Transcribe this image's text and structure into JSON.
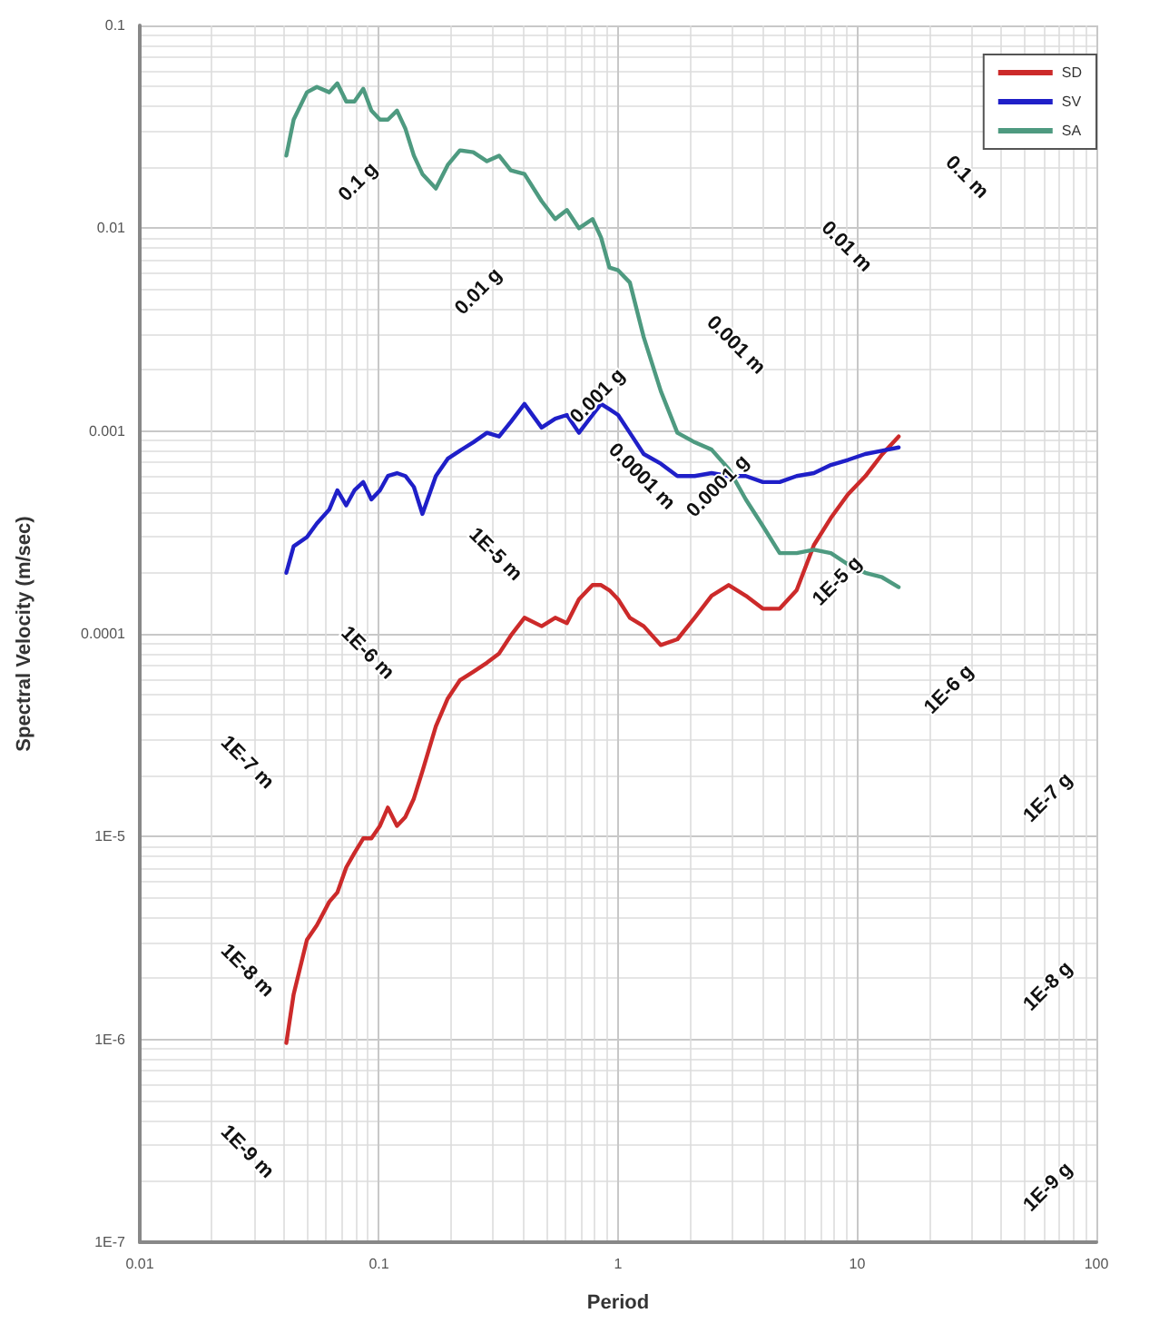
{
  "chart_data": {
    "type": "line",
    "xlabel": "Period",
    "ylabel": "Spectral Velocity (m/sec)",
    "x": [
      0.041,
      0.044,
      0.05,
      0.055,
      0.062,
      0.067,
      0.073,
      0.079,
      0.086,
      0.093,
      0.101,
      0.109,
      0.119,
      0.129,
      0.14,
      0.152,
      0.173,
      0.194,
      0.218,
      0.248,
      0.283,
      0.318,
      0.356,
      0.406,
      0.479,
      0.546,
      0.611,
      0.686,
      0.782,
      0.849,
      0.92,
      1.0,
      1.12,
      1.28,
      1.51,
      1.77,
      2.09,
      2.46,
      2.9,
      3.42,
      4.03,
      4.74,
      5.58,
      6.59,
      7.76,
      9.14,
      10.8,
      12.7,
      14.9
    ],
    "series": [
      {
        "name": "SD",
        "color": "#cc2a2a",
        "values": [
          9.6e-07,
          1.67e-06,
          3.1e-06,
          3.65e-06,
          4.77e-06,
          5.3e-06,
          7.05e-06,
          8.3e-06,
          9.8e-06,
          9.8e-06,
          1.13e-05,
          1.39e-05,
          1.13e-05,
          1.25e-05,
          1.54e-05,
          2.1e-05,
          3.5e-05,
          4.8e-05,
          5.9e-05,
          6.5e-05,
          7.2e-05,
          8e-05,
          9.8e-05,
          0.00012,
          0.000109,
          0.00012,
          0.000113,
          0.000148,
          0.000174,
          0.000174,
          0.000164,
          0.000148,
          0.00012,
          0.000109,
          8.8e-05,
          9.4e-05,
          0.00012,
          0.000154,
          0.000174,
          0.000154,
          0.000133,
          0.000133,
          0.000164,
          0.000274,
          0.000373,
          0.000487,
          0.000598,
          0.000766,
          0.00094
        ]
      },
      {
        "name": "SV",
        "color": "#1f1fc8",
        "values": [
          0.0002,
          0.00027,
          0.0003,
          0.00035,
          0.00041,
          0.00051,
          0.00043,
          0.00051,
          0.00056,
          0.00046,
          0.00051,
          0.0006,
          0.00062,
          0.0006,
          0.00053,
          0.00039,
          0.0006,
          0.00073,
          0.0008,
          0.00088,
          0.00098,
          0.00094,
          0.00111,
          0.00136,
          0.00104,
          0.00115,
          0.0012,
          0.00098,
          0.0012,
          0.00136,
          0.00128,
          0.0012,
          0.00098,
          0.00077,
          0.00069,
          0.0006,
          0.0006,
          0.00062,
          0.0006,
          0.0006,
          0.00056,
          0.00056,
          0.0006,
          0.00062,
          0.00068,
          0.00072,
          0.00077,
          0.0008,
          0.00083
        ]
      },
      {
        "name": "SA",
        "color": "#4e9a80",
        "values": [
          0.0228,
          0.0343,
          0.0468,
          0.0497,
          0.0468,
          0.0518,
          0.0422,
          0.0422,
          0.0487,
          0.038,
          0.0343,
          0.0343,
          0.038,
          0.031,
          0.0228,
          0.0185,
          0.0157,
          0.0205,
          0.0242,
          0.0237,
          0.0214,
          0.0228,
          0.0193,
          0.0185,
          0.0136,
          0.0111,
          0.0123,
          0.01,
          0.0111,
          0.009,
          0.0064,
          0.0062,
          0.0054,
          0.0029,
          0.00157,
          0.00098,
          0.00088,
          0.00081,
          0.00065,
          0.00046,
          0.00034,
          0.00025,
          0.00025,
          0.00026,
          0.00025,
          0.00022,
          0.0002,
          0.00019,
          0.00017
        ]
      }
    ],
    "log": "xy",
    "xlim": [
      0.01,
      100
    ],
    "xticks": [
      0.01,
      0.1,
      1,
      10,
      100
    ],
    "ylim": [
      1e-07,
      0.1
    ],
    "yticks": [
      {
        "value": 1e-07,
        "label": "1E-7"
      },
      {
        "value": 1e-06,
        "label": "1E-6"
      },
      {
        "value": 1e-05,
        "label": "1E-5"
      },
      0.0001,
      0.001,
      0.01,
      0.1
    ],
    "grid": true,
    "legend": "top right",
    "marker": "none",
    "line_style": "solid",
    "annotations": [
      "0.1 g",
      "0.01 g",
      "0.001 g",
      "0.0001 g",
      "1E-5 g",
      "1E-6 g",
      "1E-7 g",
      "1E-8 g",
      "1E-9 g",
      "0.1 m",
      "0.01 m",
      "0.001 m",
      "0.0001 m",
      "1E-5 m",
      "1E-6 m",
      "1E-7 m",
      "1E-8 m",
      "1E-9 m"
    ]
  }
}
